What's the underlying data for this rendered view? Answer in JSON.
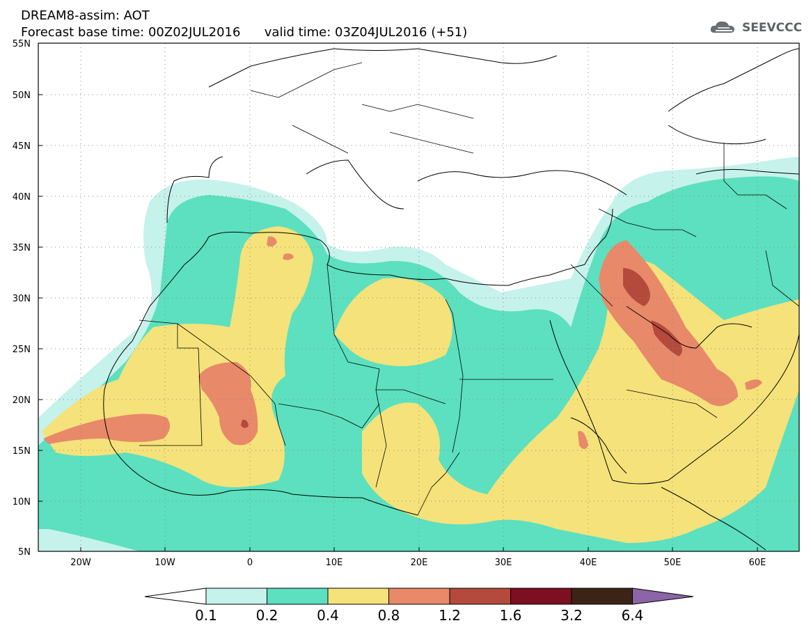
{
  "header": {
    "title_line1": "DREAM8-assim: AOT",
    "title_line2": "Forecast base time: 00Z02JUL2016      valid time: 03Z04JUL2016 (+51)",
    "logo_text": "SEEVCCC"
  },
  "map": {
    "lat_labels": [
      "55N",
      "50N",
      "45N",
      "40N",
      "35N",
      "30N",
      "25N",
      "20N",
      "15N",
      "10N",
      "5N"
    ],
    "lon_labels": [
      "20W",
      "10W",
      "0",
      "10E",
      "20E",
      "30E",
      "40E",
      "50E",
      "60E"
    ],
    "lat_range": [
      5,
      55
    ],
    "lon_range": [
      -25,
      65
    ],
    "grid": "dotted"
  },
  "colorbar": {
    "levels": [
      "0.1",
      "0.2",
      "0.4",
      "0.8",
      "1.2",
      "1.6",
      "3.2",
      "6.4"
    ],
    "colors": [
      "#c6f2ec",
      "#5ce0bf",
      "#f5e27a",
      "#e8896a",
      "#b44a3c",
      "#7d0f22",
      "#3b2416"
    ],
    "under_color": "#ffffff",
    "over_color": "#8b65a7"
  }
}
